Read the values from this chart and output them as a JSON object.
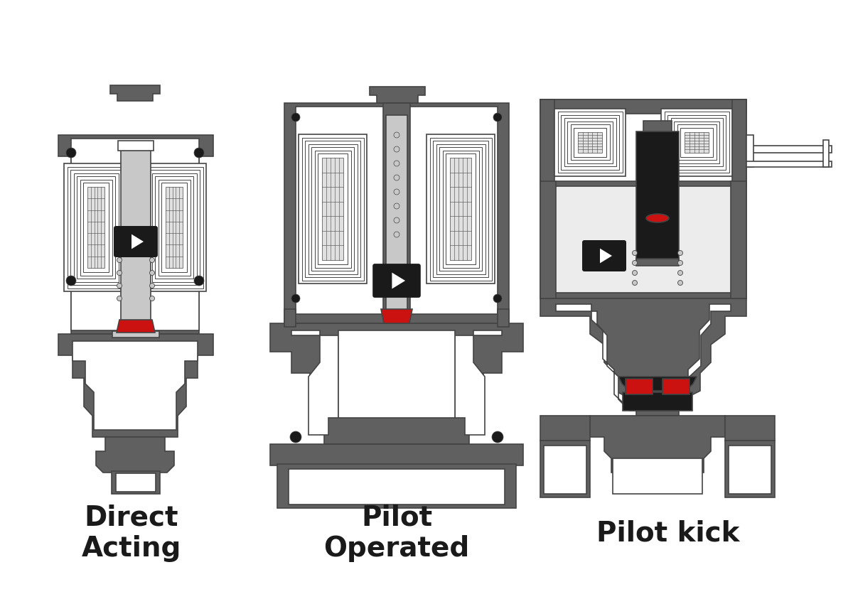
{
  "labels": [
    "Direct\nActing",
    "Pilot\nOperated",
    "Pilot kick"
  ],
  "background_color": "#ffffff",
  "dark_gray": "#606060",
  "med_gray": "#909090",
  "light_gray": "#c8c8c8",
  "very_light_gray": "#ececec",
  "red": "#cc1111",
  "black": "#1a1a1a",
  "white": "#ffffff",
  "outline_color": "#444444",
  "label_fontsize": 28
}
